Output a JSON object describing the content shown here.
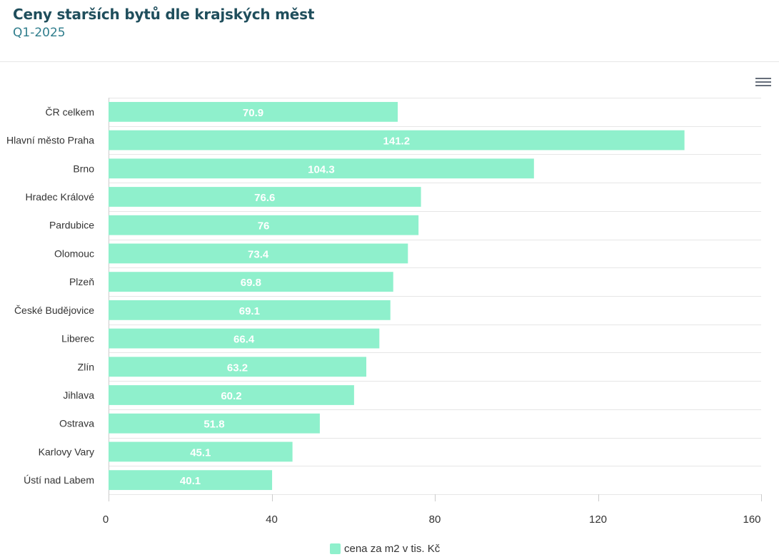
{
  "header": {
    "title": "Ceny starších bytů dle krajských měst",
    "subtitle": "Q1-2025"
  },
  "colors": {
    "bar": "#8ff0cc",
    "grid": "#e6e6e6",
    "axis": "#cccccc"
  },
  "icons": {
    "menu": "hamburger-menu-icon"
  },
  "chart_data": {
    "type": "bar",
    "orientation": "horizontal",
    "title": "Ceny starších bytů dle krajských měst",
    "subtitle": "Q1-2025",
    "categories": [
      "ČR celkem",
      "Hlavní město Praha",
      "Brno",
      "Hradec Králové",
      "Pardubice",
      "Olomouc",
      "Plzeň",
      "České Budějovice",
      "Liberec",
      "Zlín",
      "Jihlava",
      "Ostrava",
      "Karlovy Vary",
      "Ústí nad Labem"
    ],
    "series": [
      {
        "name": "cena za m2 v tis. Kč",
        "values": [
          70.9,
          141.2,
          104.3,
          76.6,
          76,
          73.4,
          69.8,
          69.1,
          66.4,
          63.2,
          60.2,
          51.8,
          45.1,
          40.1
        ],
        "data_labels": [
          "70.9",
          "141.2",
          "104.3",
          "76.6",
          "76",
          "73.4",
          "69.8",
          "69.1",
          "66.4",
          "63.2",
          "60.2",
          "51.8",
          "45.1",
          "40.1"
        ]
      }
    ],
    "xlim": [
      0,
      160
    ],
    "ticks": [
      0,
      40,
      80,
      120,
      160
    ],
    "tick_labels": [
      "0",
      "40",
      "80",
      "120",
      "160"
    ],
    "grid": true,
    "legend": "bottom-center"
  },
  "legend": {
    "label": "cena za m2 v tis. Kč"
  }
}
